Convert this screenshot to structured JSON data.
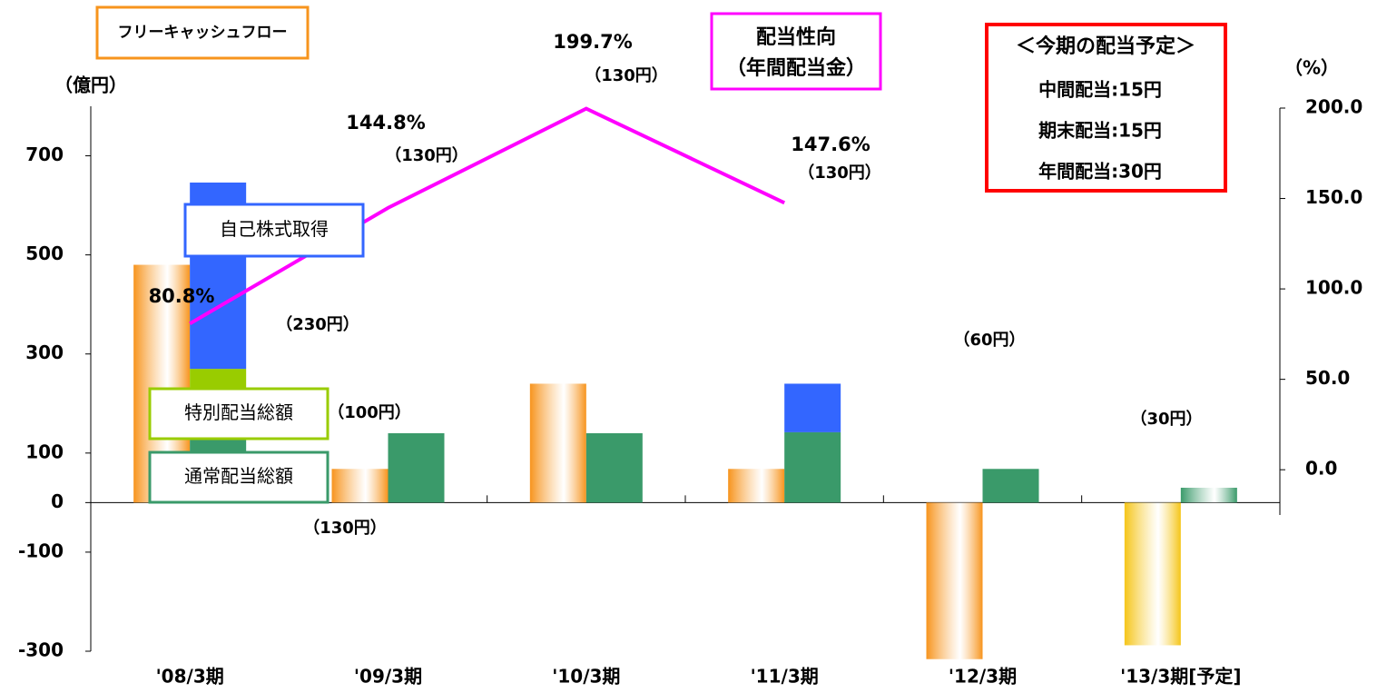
{
  "chart_data": {
    "type": "combo",
    "categories": [
      "'08/3期",
      "'09/3期",
      "'10/3期",
      "'11/3期",
      "'12/3期",
      "'13/3期[予定]"
    ],
    "ylabel": "（億円）",
    "y2label": "（%）",
    "ylim": [
      -300,
      800
    ],
    "yticks": [
      -300,
      -100,
      0,
      100,
      300,
      500,
      700
    ],
    "negative_tick_color": "#ff0000",
    "y2lim": [
      -20,
      200
    ],
    "y2ticks": [
      {
        "value": 0,
        "label": "0.0"
      },
      {
        "value": 50,
        "label": "50.0"
      },
      {
        "value": 100,
        "label": "100.0"
      },
      {
        "value": 150,
        "label": "150.0"
      },
      {
        "value": 200,
        "label": "200.0"
      }
    ],
    "series": [
      {
        "name": "フリーキャッシュフロー",
        "type": "bar",
        "group": "left",
        "color": "#f7941d",
        "colors": [
          "#f7941d",
          "#f7941d",
          "#f7941d",
          "#f7941d",
          "#f7941d",
          "#f5c518"
        ],
        "values": [
          480,
          68,
          240,
          68,
          -316,
          -288
        ]
      },
      {
        "name": "通常配当総額",
        "type": "bar",
        "group": "right",
        "color": "#3a9a6a",
        "colors": [
          "#3a9a6a",
          "#3a9a6a",
          "#3a9a6a",
          "#3a9a6a",
          "#3a9a6a",
          "#3a9a6a"
        ],
        "values": [
          140,
          140,
          140,
          142,
          68,
          30
        ]
      },
      {
        "name": "特別配当総額",
        "type": "bar",
        "group": "right",
        "color": "#99cc00",
        "colors": [
          "#99cc00",
          "#99cc00",
          "#99cc00",
          "#99cc00",
          "#99cc00",
          "#99cc00"
        ],
        "values": [
          130,
          0,
          0,
          0,
          0,
          0
        ]
      },
      {
        "name": "自己株式取得",
        "type": "bar",
        "group": "right",
        "color": "#3366ff",
        "colors": [
          "#3366ff",
          "#3366ff",
          "#3366ff",
          "#3366ff",
          "#3366ff",
          "#3366ff"
        ],
        "values": [
          376,
          0,
          0,
          98,
          0,
          0
        ]
      },
      {
        "name": "配当性向",
        "note": "（年間配当金）",
        "type": "line",
        "axis": "y2",
        "color": "#ff00ff",
        "values": [
          80.8,
          144.8,
          199.7,
          147.6,
          null,
          null
        ],
        "value_labels": [
          "80.8%",
          "144.8%",
          "199.7%",
          "147.6%",
          null,
          null
        ]
      }
    ],
    "annotations": [
      {
        "text": "（230円）"
      },
      {
        "text": "（100円）"
      },
      {
        "text": "（130円）"
      },
      {
        "text": "（130円）"
      },
      {
        "text": "（130円）"
      },
      {
        "text": "（130円）"
      },
      {
        "text": "（60円）"
      },
      {
        "text": "（30円）"
      }
    ],
    "forecast_box": {
      "title": "＜今期の配当予定＞",
      "lines": [
        "中間配当:15円",
        "期末配当:15円",
        "年間配当:30円"
      ]
    }
  }
}
